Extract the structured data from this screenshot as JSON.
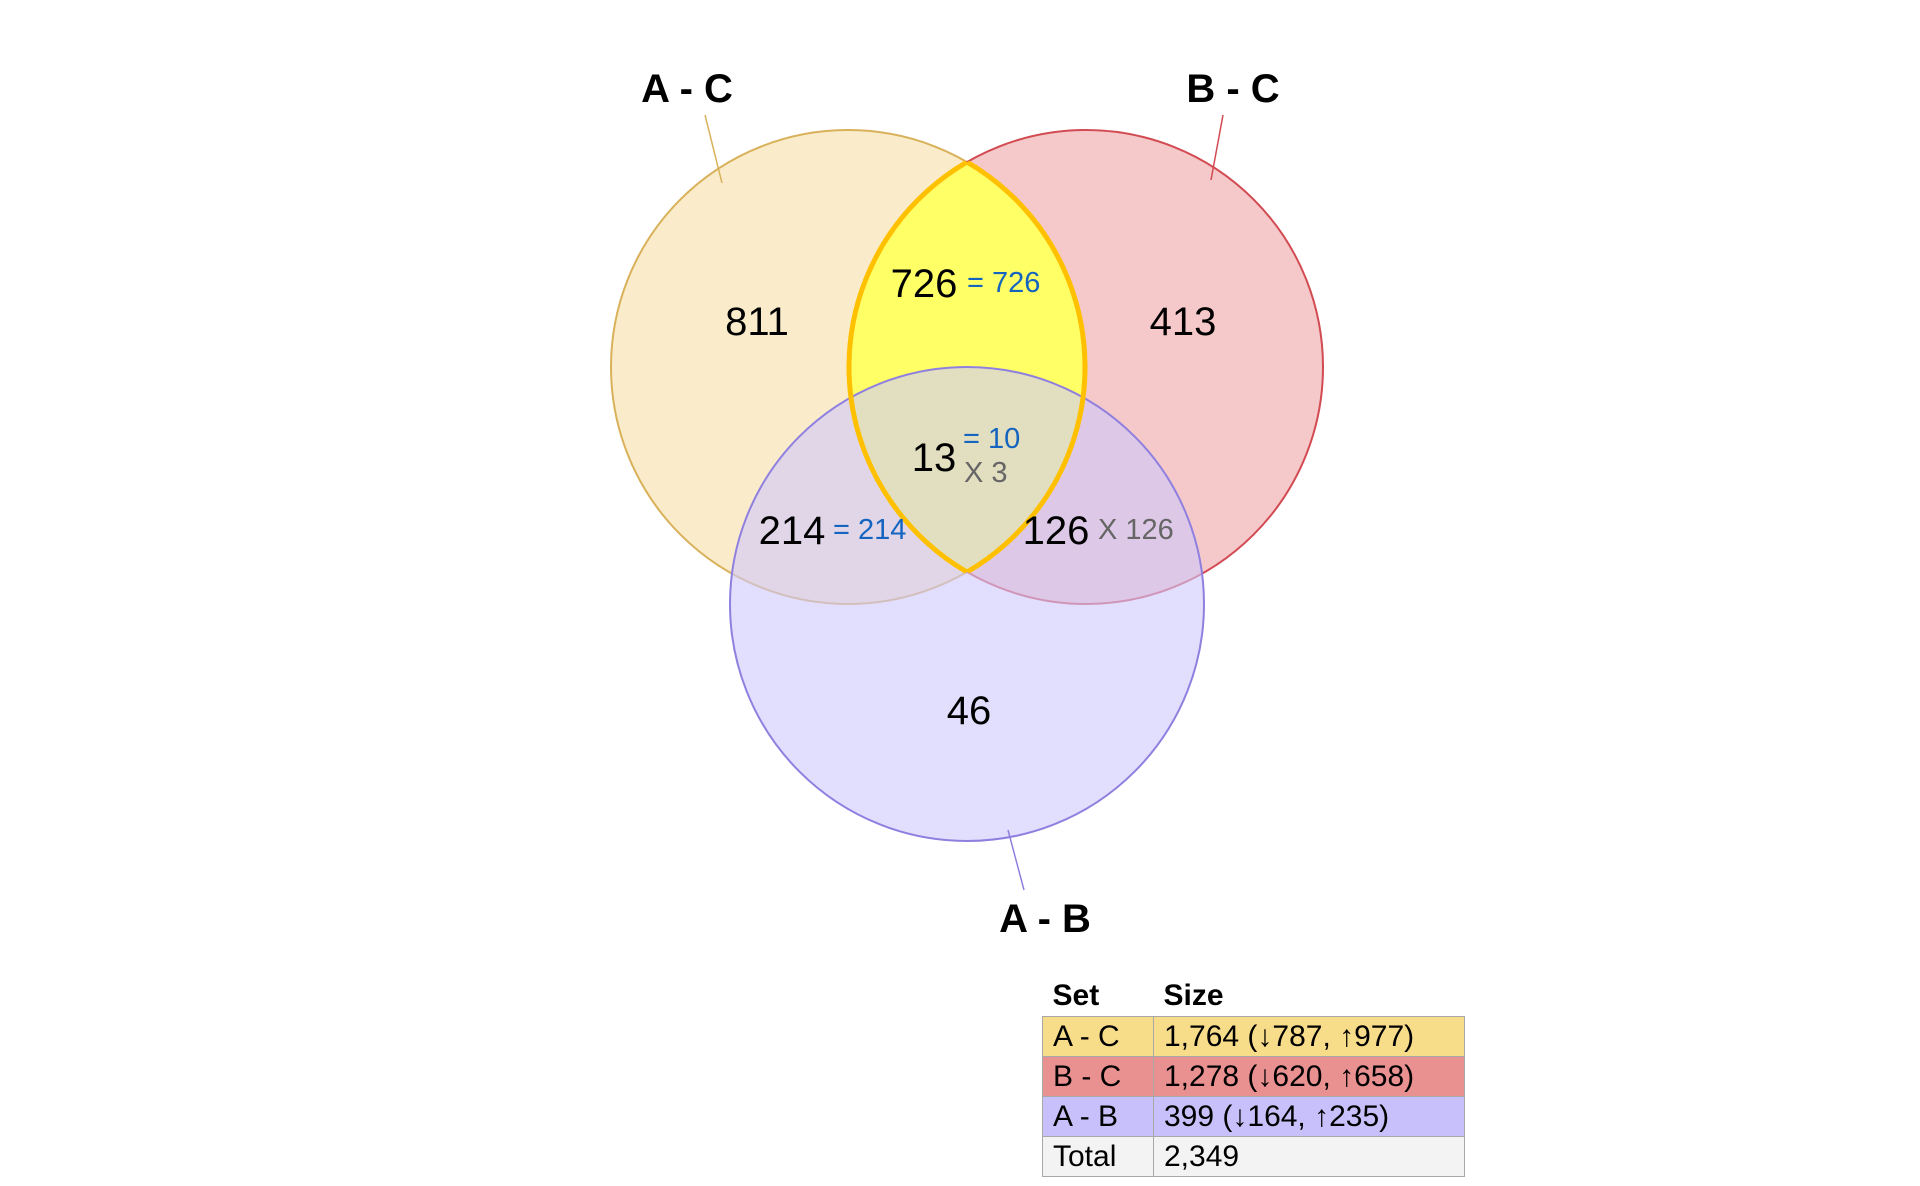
{
  "diagram": {
    "sets": [
      {
        "key": "ac",
        "label": "A - C",
        "color": "#f7e2ae",
        "stroke": "#d9b15a"
      },
      {
        "key": "bc",
        "label": "B - C",
        "color": "#f0abac",
        "stroke": "#d24b52"
      },
      {
        "key": "ab",
        "label": "A - B",
        "color": "#cfc8fb",
        "stroke": "#8f80e0"
      }
    ],
    "highlight_color": "#ffff66",
    "highlight_stroke": "#ffc000",
    "regions": {
      "ac_only": {
        "count": "811"
      },
      "bc_only": {
        "count": "413"
      },
      "ab_only": {
        "count": "46"
      },
      "ac_bc": {
        "count": "726",
        "equal": "= 726"
      },
      "ac_ab": {
        "count": "214",
        "equal": "= 214"
      },
      "bc_ab": {
        "count": "126",
        "opposite": "X 126"
      },
      "all": {
        "count": "13",
        "equal": "= 10",
        "opposite": "X 3"
      }
    }
  },
  "legend": {
    "headers": [
      "Set",
      "Size"
    ],
    "rows": [
      {
        "set": "A - C",
        "size": "1,764 (↓787, ↑977)",
        "color": "#f7dc8a"
      },
      {
        "set": "B - C",
        "size": "1,278 (↓620, ↑658)",
        "color": "#e99090"
      },
      {
        "set": "A - B",
        "size": "399 (↓164, ↑235)",
        "color": "#c8c0fa"
      },
      {
        "set": "Total",
        "size": "2,349",
        "color": "#f3f3f3"
      }
    ]
  }
}
